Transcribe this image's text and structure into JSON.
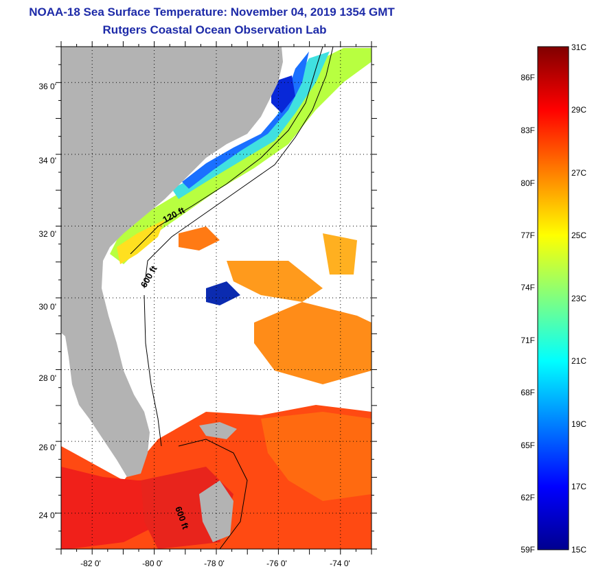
{
  "title": "NOAA-18 Sea Surface Temperature:  November 04, 2019 1354 GMT",
  "subtitle": "Rutgers Coastal Ocean Observation Lab",
  "map": {
    "lon_ticks": [
      "-82 0'",
      "-80 0'",
      "-78 0'",
      "-76 0'",
      "-74 0'"
    ],
    "lat_ticks": [
      "36 0'",
      "34 0'",
      "32 0'",
      "30 0'",
      "28 0'",
      "26 0'",
      "24 0'"
    ],
    "lon_range": [
      -83,
      -73
    ],
    "lat_range": [
      23,
      37
    ],
    "contour_labels": [
      "120 ft",
      "600 ft",
      "600 ft"
    ],
    "land_color": "#b3b3b3",
    "no_data_color": "#ffffff"
  },
  "colorbar": {
    "celsius_labels": [
      "31C",
      "29C",
      "27C",
      "25C",
      "23C",
      "21C",
      "19C",
      "17C",
      "15C"
    ],
    "fahrenheit_labels": [
      "86F",
      "83F",
      "80F",
      "77F",
      "74F",
      "71F",
      "68F",
      "65F",
      "62F",
      "59F"
    ],
    "range_c": [
      15,
      31
    ],
    "colormap": "jet"
  }
}
